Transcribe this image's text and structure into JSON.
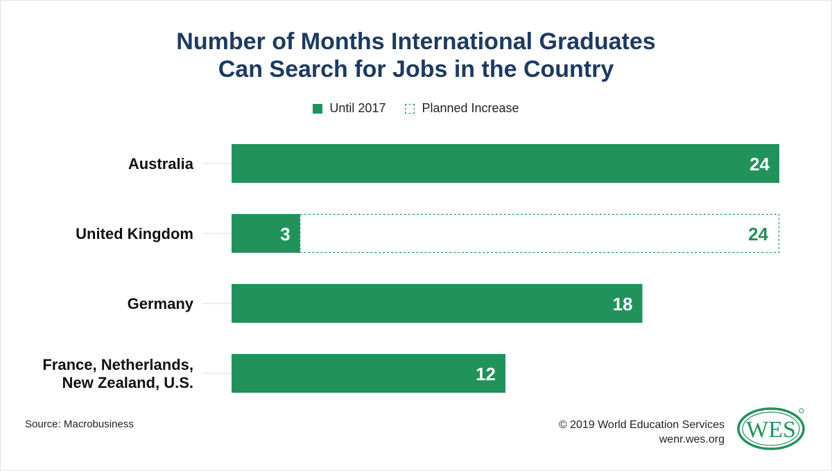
{
  "title": {
    "line1": "Number of Months International Graduates",
    "line2": "Can Search for Jobs in the Country"
  },
  "legend": {
    "until": "Until 2017",
    "planned": "Planned Increase"
  },
  "chart_data": {
    "type": "bar",
    "orientation": "horizontal",
    "title": "Number of Months International Graduates Can Search for Jobs in the Country",
    "categories": [
      [
        "Australia"
      ],
      [
        "United Kingdom"
      ],
      [
        "Germany"
      ],
      [
        "France, Netherlands,",
        "New Zealand, U.S."
      ]
    ],
    "series": [
      {
        "name": "Until 2017",
        "values": [
          24,
          3,
          18,
          12
        ]
      },
      {
        "name": "Planned Increase",
        "values": [
          null,
          24,
          null,
          null
        ]
      }
    ],
    "xlim": [
      0,
      24
    ],
    "grid": false,
    "legend_position": "top-center",
    "colors": {
      "bar": "#21925a",
      "planned_border": "#21925a",
      "label_on_bar": "#ffffff",
      "label_planned": "#21925a"
    }
  },
  "footer": {
    "source": "Source: Macrobusiness",
    "copyright": "© 2019 World Education Services",
    "url": "wenr.wes.org"
  },
  "logo": {
    "text": "WES",
    "color": "#21925a",
    "icon": "wes-logo-icon"
  }
}
